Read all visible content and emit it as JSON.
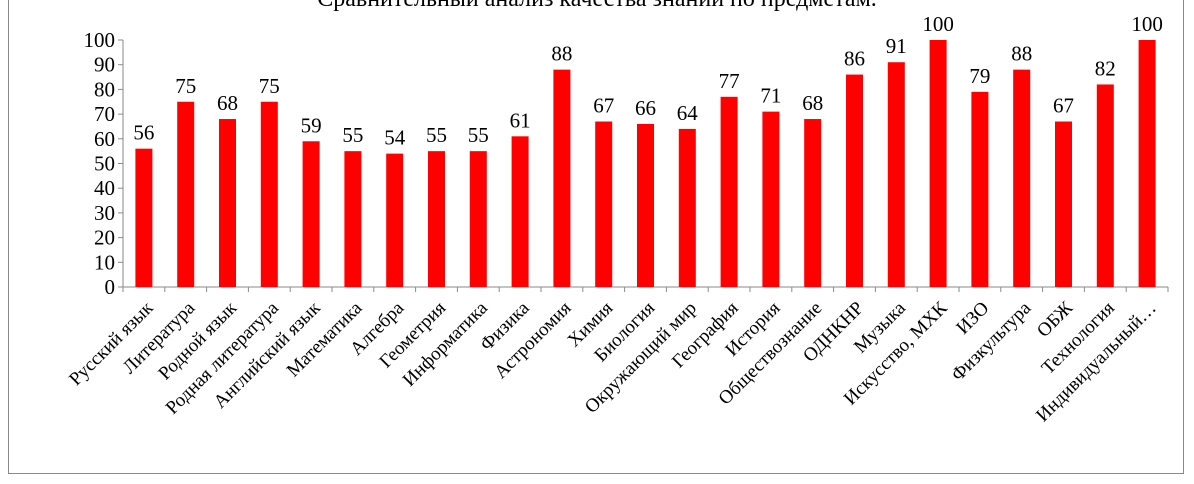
{
  "chart_data": {
    "type": "bar",
    "title": "Сравнительный анализ качества знаний по предметам.",
    "xlabel": "",
    "ylabel": "",
    "ylim": [
      0,
      100
    ],
    "yticks": [
      0,
      10,
      20,
      30,
      40,
      50,
      60,
      70,
      80,
      90,
      100
    ],
    "grid": false,
    "legend": "none",
    "bar_color": "#ff0000",
    "categories": [
      "Русский язык",
      "Литература",
      "Родной язык",
      "Родная литература",
      "Английский язык",
      "Математика",
      "Алгебра",
      "Геометрия",
      "Информатика",
      "Физика",
      "Астрономия",
      "Химия",
      "Биология",
      "Окружающий мир",
      "География",
      "История",
      "Обществознание",
      "ОДНКНР",
      "Музыка",
      "Искусство, МХК",
      "ИЗО",
      "Физкультура",
      "ОБЖ",
      "Технология",
      "Индивидуальный…"
    ],
    "values": [
      56,
      75,
      68,
      75,
      59,
      55,
      54,
      55,
      55,
      61,
      88,
      67,
      66,
      64,
      77,
      71,
      68,
      86,
      91,
      100,
      79,
      88,
      67,
      82,
      100
    ]
  }
}
